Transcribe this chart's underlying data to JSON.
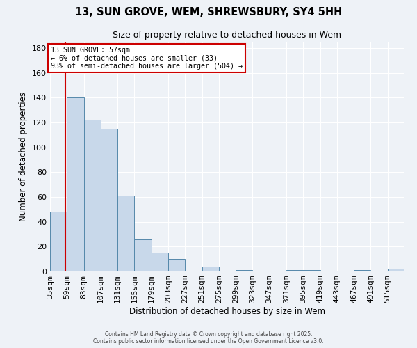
{
  "title": "13, SUN GROVE, WEM, SHREWSBURY, SY4 5HH",
  "subtitle": "Size of property relative to detached houses in Wem",
  "xlabel": "Distribution of detached houses by size in Wem",
  "ylabel": "Number of detached properties",
  "bar_color": "#c8d8ea",
  "bar_edge_color": "#5588aa",
  "background_color": "#eef2f7",
  "grid_color": "#ffffff",
  "annotation_box_color": "#ffffff",
  "annotation_box_edge": "#cc0000",
  "marker_line_color": "#cc0000",
  "bin_labels": [
    "35sqm",
    "59sqm",
    "83sqm",
    "107sqm",
    "131sqm",
    "155sqm",
    "179sqm",
    "203sqm",
    "227sqm",
    "251sqm",
    "275sqm",
    "299sqm",
    "323sqm",
    "347sqm",
    "371sqm",
    "395sqm",
    "419sqm",
    "443sqm",
    "467sqm",
    "491sqm",
    "515sqm"
  ],
  "bin_edges": [
    35,
    59,
    83,
    107,
    131,
    155,
    179,
    203,
    227,
    251,
    275,
    299,
    323,
    347,
    371,
    395,
    419,
    443,
    467,
    491,
    515,
    539
  ],
  "values": [
    48,
    140,
    122,
    115,
    61,
    26,
    15,
    10,
    0,
    4,
    0,
    1,
    0,
    0,
    1,
    1,
    0,
    0,
    1,
    0,
    2
  ],
  "marker_value": 57,
  "ylim": [
    0,
    185
  ],
  "yticks": [
    0,
    20,
    40,
    60,
    80,
    100,
    120,
    140,
    160,
    180
  ],
  "annotation_line1": "13 SUN GROVE: 57sqm",
  "annotation_line2": "← 6% of detached houses are smaller (33)",
  "annotation_line3": "93% of semi-detached houses are larger (504) →",
  "footer1": "Contains HM Land Registry data © Crown copyright and database right 2025.",
  "footer2": "Contains public sector information licensed under the Open Government Licence v3.0."
}
